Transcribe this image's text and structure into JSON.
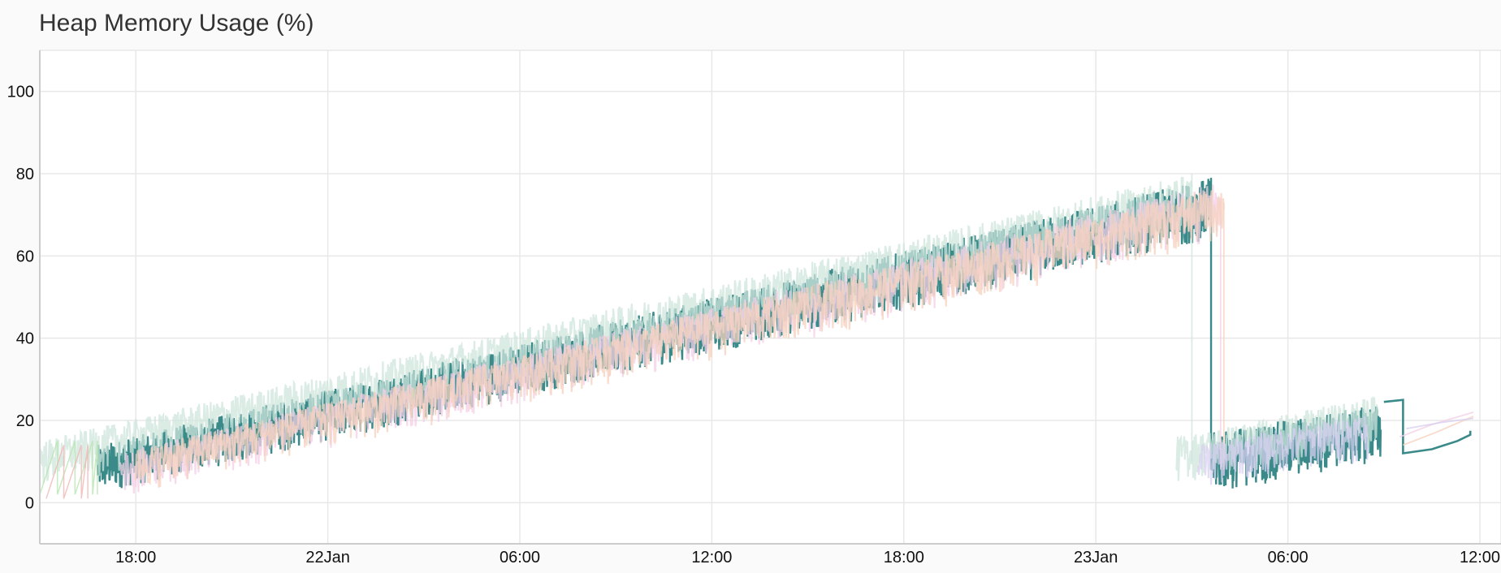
{
  "chart_data": {
    "type": "line",
    "title": "Heap Memory Usage (%)",
    "xlabel": "",
    "ylabel": "",
    "x_range_hours": [
      -9.0,
      36.0
    ],
    "ylim": [
      -10,
      110
    ],
    "y_ticks": [
      0,
      20,
      40,
      60,
      80,
      100
    ],
    "x_ticks": [
      {
        "label": "18:00",
        "x": -6
      },
      {
        "label": "22Jan",
        "x": 0
      },
      {
        "label": "06:00",
        "x": 6
      },
      {
        "label": "12:00",
        "x": 12
      },
      {
        "label": "18:00",
        "x": 18
      },
      {
        "label": "23Jan",
        "x": 24
      },
      {
        "label": "06:00",
        "x": 30
      },
      {
        "label": "12:00",
        "x": 36
      }
    ],
    "grid": true,
    "legend": "none",
    "series": [
      {
        "color": "#3a8a8a",
        "style": "primary",
        "segments": [
          {
            "x_start": -7.2,
            "x_end": 27.6,
            "y_min_start": 2,
            "y_max_start": 14,
            "y_min_end": 64,
            "y_max_end": 79
          },
          {
            "x_start": 27.6,
            "x_end": 32.9,
            "y_min_start": 2,
            "y_max_start": 17,
            "y_min_end": 10,
            "y_max_end": 24
          }
        ],
        "tail": [
          [
            33.0,
            24.5
          ],
          [
            33.6,
            25
          ],
          [
            33.6,
            12
          ],
          [
            34.5,
            13
          ],
          [
            35.3,
            15
          ],
          [
            35.7,
            16.5
          ],
          [
            35.7,
            17.5
          ]
        ]
      },
      {
        "color": "#cfe6dc",
        "style": "faint",
        "segments": [
          {
            "x_start": -9.0,
            "x_end": 27.0,
            "y_min_start": 3,
            "y_max_start": 15,
            "y_min_end": 65,
            "y_max_end": 80
          },
          {
            "x_start": 26.5,
            "x_end": 32.8,
            "y_min_start": 4,
            "y_max_start": 16,
            "y_min_end": 12,
            "y_max_end": 26
          }
        ],
        "tail": []
      },
      {
        "color": "#f4cfe6",
        "style": "faint",
        "segments": [
          {
            "x_start": -6.5,
            "x_end": 27.9,
            "y_min_start": 1,
            "y_max_start": 12,
            "y_min_end": 63,
            "y_max_end": 78
          }
        ],
        "tail": [
          [
            33.5,
            16
          ],
          [
            34.5,
            19
          ],
          [
            35.8,
            22
          ]
        ]
      },
      {
        "color": "#f6d2bf",
        "style": "faint",
        "segments": [
          {
            "x_start": -6.0,
            "x_end": 28.0,
            "y_min_start": 2,
            "y_max_start": 13,
            "y_min_end": 63,
            "y_max_end": 77
          }
        ],
        "tail": [
          [
            33.6,
            14
          ],
          [
            34.6,
            17
          ],
          [
            35.8,
            21
          ]
        ]
      },
      {
        "color": "#d8d0f0",
        "style": "faint",
        "segments": [
          {
            "x_start": 27.2,
            "x_end": 32.5,
            "y_min_start": 3,
            "y_max_start": 14,
            "y_min_end": 10,
            "y_max_end": 22
          }
        ],
        "tail": [
          [
            33.7,
            18
          ],
          [
            34.8,
            19.5
          ],
          [
            35.8,
            20.5
          ]
        ]
      },
      {
        "color": "#b8e6b0",
        "style": "sawtooth",
        "segments": [
          {
            "x_start": -9.0,
            "x_end": -7.2,
            "y_min_start": 2,
            "y_max_start": 15,
            "y_min_end": 2,
            "y_max_end": 15
          }
        ],
        "tail": []
      },
      {
        "color": "#f0b8b8",
        "style": "sawtooth",
        "segments": [
          {
            "x_start": -8.8,
            "x_end": -7.5,
            "y_min_start": 1,
            "y_max_start": 14,
            "y_min_end": 1,
            "y_max_end": 14
          }
        ],
        "tail": []
      }
    ]
  }
}
